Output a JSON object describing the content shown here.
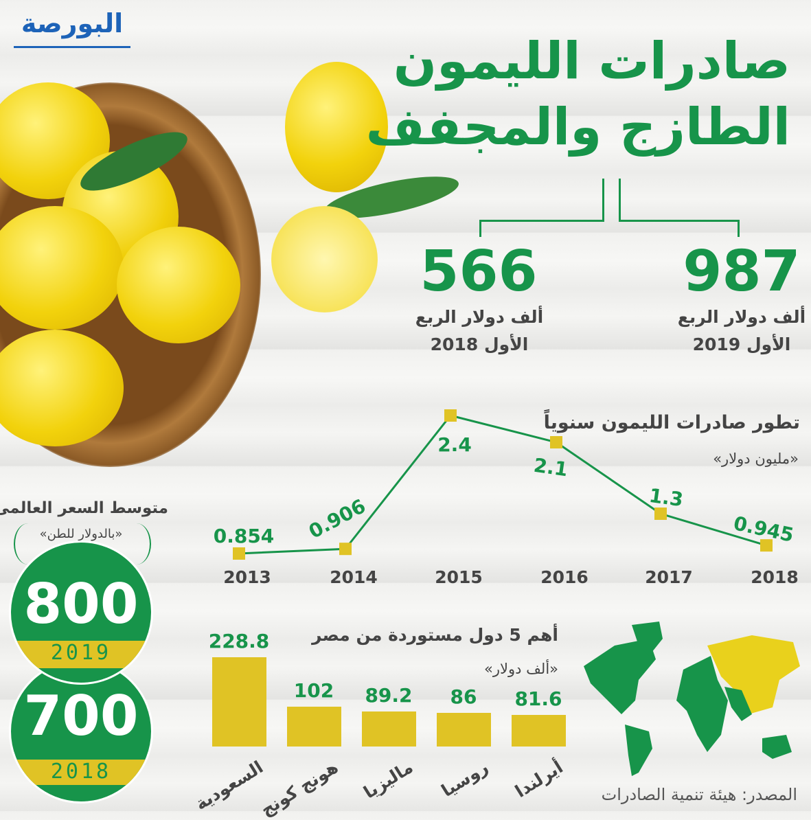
{
  "logo": {
    "text": "البورصة"
  },
  "title": {
    "line1": "صادرات الليمون",
    "line2": "الطازج والمجفف"
  },
  "q1": {
    "y2018": {
      "value": "566",
      "caption1": "ألف دولار الربع",
      "caption2": "الأول 2018"
    },
    "y2019": {
      "value": "987",
      "caption1": "ألف دولار الربع",
      "caption2": "الأول 2019"
    }
  },
  "world_price": {
    "title": "متوسط السعر العالمى",
    "unit": "«بالدولار للطن»",
    "items": [
      {
        "value": "800",
        "year": "2019"
      },
      {
        "value": "700",
        "year": "2018"
      }
    ]
  },
  "source": "المصدر: هيئة تنمية الصادرات",
  "colors": {
    "green": "#17944a",
    "yellow": "#e0c325",
    "text": "#444444"
  },
  "chart_data": [
    {
      "type": "line",
      "title": "تطور صادرات الليمون سنوياً",
      "ylabel": "«مليون دولار»",
      "categories": [
        "2013",
        "2014",
        "2015",
        "2016",
        "2017",
        "2018"
      ],
      "values": [
        0.854,
        0.906,
        2.4,
        2.1,
        1.3,
        0.945
      ],
      "labels": [
        "0.854",
        "0.906",
        "2.4",
        "2.1",
        "1.3",
        "0.945"
      ],
      "grid": false
    },
    {
      "type": "bar",
      "title": "أهم 5 دول مستوردة من مصر",
      "ylabel": "«ألف دولار»",
      "categories": [
        "السعودية",
        "هونج كونج",
        "ماليزيا",
        "روسيا",
        "أيرلندا"
      ],
      "values": [
        228.8,
        102,
        89.2,
        86,
        81.6
      ],
      "labels": [
        "228.8",
        "102",
        "89.2",
        "86",
        "81.6"
      ],
      "grid": false
    }
  ]
}
